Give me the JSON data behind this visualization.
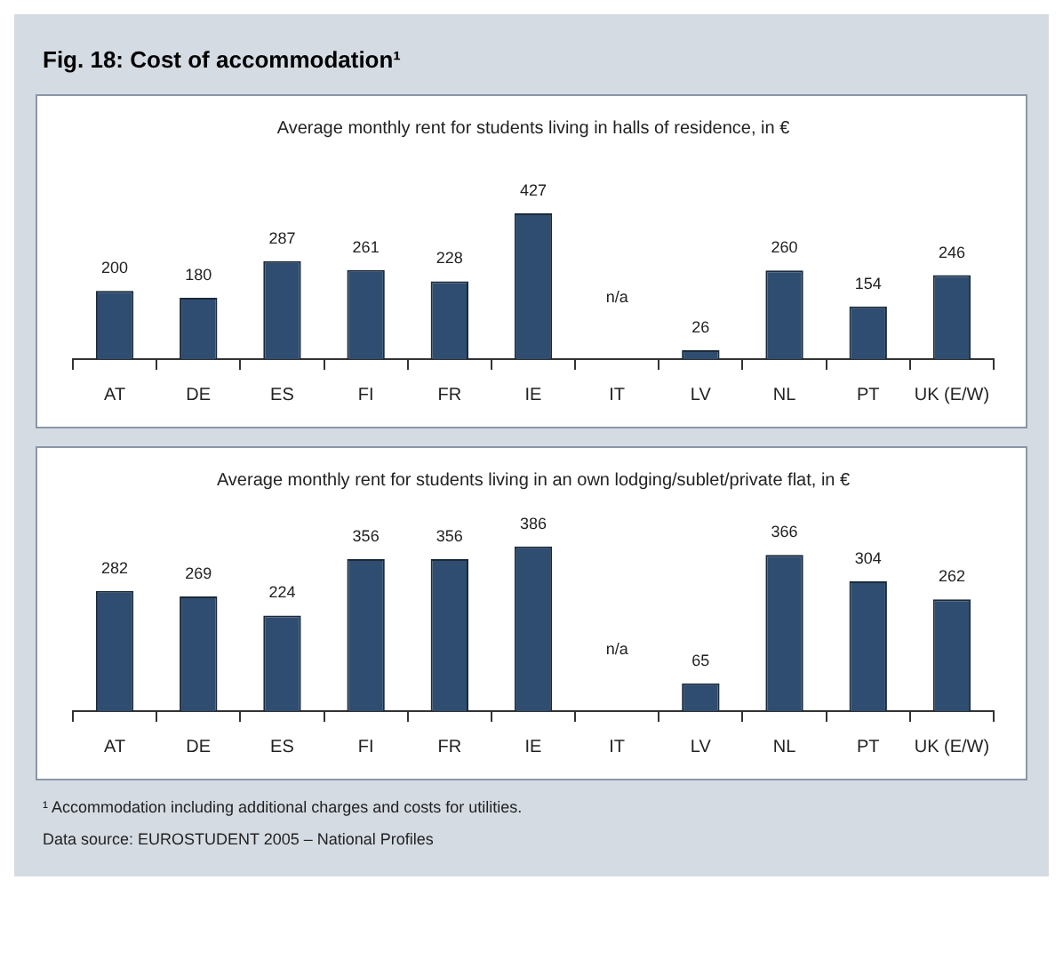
{
  "chart_data": [
    {
      "type": "bar",
      "title": "Fig. 18: Cost of accommodation¹",
      "subtitle": "Average monthly rent for students living in halls of residence, in €",
      "categories": [
        "AT",
        "DE",
        "ES",
        "FI",
        "FR",
        "IE",
        "IT",
        "LV",
        "NL",
        "PT",
        "UK (E/W)"
      ],
      "values": [
        200,
        180,
        287,
        261,
        228,
        427,
        null,
        26,
        260,
        154,
        246
      ],
      "value_labels": [
        "200",
        "180",
        "287",
        "261",
        "228",
        "427",
        "n/a",
        "26",
        "260",
        "154",
        "246"
      ],
      "color": "#2f4d70"
    },
    {
      "type": "bar",
      "subtitle": "Average monthly rent for students living in an own lodging/sublet/private flat, in €",
      "categories": [
        "AT",
        "DE",
        "ES",
        "FI",
        "FR",
        "IE",
        "IT",
        "LV",
        "NL",
        "PT",
        "UK (E/W)"
      ],
      "values": [
        282,
        269,
        224,
        356,
        356,
        386,
        null,
        65,
        366,
        304,
        262
      ],
      "value_labels": [
        "282",
        "269",
        "224",
        "356",
        "356",
        "386",
        "n/a",
        "65",
        "366",
        "304",
        "262"
      ],
      "color": "#2f4d70",
      "annotations": [
        "¹ Accommodation including additional charges and costs for utilities.",
        "Data source: EUROSTUDENT 2005 – National Profiles"
      ]
    }
  ]
}
